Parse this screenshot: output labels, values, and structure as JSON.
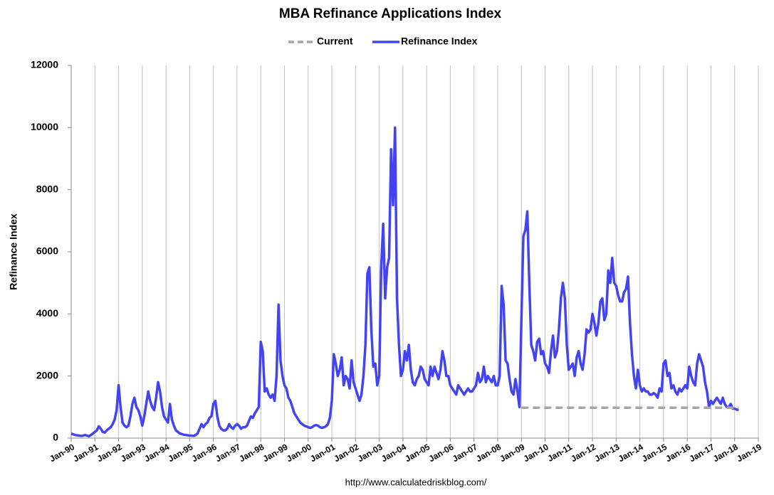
{
  "chart_data": {
    "type": "line",
    "title": "MBA Refinance Applications Index",
    "ylabel": "Refinance Index",
    "footer": "http://www.calculatedriskblog.com/",
    "ylim": [
      0,
      12000
    ],
    "yticks": [
      0,
      2000,
      4000,
      6000,
      8000,
      10000,
      12000
    ],
    "xlim": [
      "1990-01",
      "2019-01"
    ],
    "xticks": [
      {
        "value": "1990-01",
        "label": "Jan-90"
      },
      {
        "value": "1991-01",
        "label": "Jan-91"
      },
      {
        "value": "1992-01",
        "label": "Jan-92"
      },
      {
        "value": "1993-01",
        "label": "Jan-93"
      },
      {
        "value": "1994-01",
        "label": "Jan-94"
      },
      {
        "value": "1995-01",
        "label": "Jan-95"
      },
      {
        "value": "1996-01",
        "label": "Jan-96"
      },
      {
        "value": "1997-01",
        "label": "Jan-97"
      },
      {
        "value": "1998-01",
        "label": "Jan-98"
      },
      {
        "value": "1999-01",
        "label": "Jan-99"
      },
      {
        "value": "2000-01",
        "label": "Jan-00"
      },
      {
        "value": "2001-01",
        "label": "Jan-01"
      },
      {
        "value": "2002-01",
        "label": "Jan-02"
      },
      {
        "value": "2003-01",
        "label": "Jan-03"
      },
      {
        "value": "2004-01",
        "label": "Jan-04"
      },
      {
        "value": "2005-01",
        "label": "Jan-05"
      },
      {
        "value": "2006-01",
        "label": "Jan-06"
      },
      {
        "value": "2007-01",
        "label": "Jan-07"
      },
      {
        "value": "2008-01",
        "label": "Jan-08"
      },
      {
        "value": "2009-01",
        "label": "Jan-09"
      },
      {
        "value": "2010-01",
        "label": "Jan-10"
      },
      {
        "value": "2011-01",
        "label": "Jan-11"
      },
      {
        "value": "2012-01",
        "label": "Jan-12"
      },
      {
        "value": "2013-01",
        "label": "Jan-13"
      },
      {
        "value": "2014-01",
        "label": "Jan-14"
      },
      {
        "value": "2015-01",
        "label": "Jan-15"
      },
      {
        "value": "2016-01",
        "label": "Jan-16"
      },
      {
        "value": "2017-01",
        "label": "Jan-17"
      },
      {
        "value": "2018-01",
        "label": "Jan-18"
      },
      {
        "value": "2019-01",
        "label": "Jan-19"
      }
    ],
    "grid": "x",
    "series": [
      {
        "name": "Current",
        "color": "#a6a6a6",
        "line_style": "dashed",
        "x": [
          "2009-01",
          "2018-03"
        ],
        "values": [
          980,
          980
        ]
      },
      {
        "name": "Refinance Index",
        "color": "#4343f2",
        "line_style": "solid",
        "x": [
          "1990-01",
          "1990-02",
          "1990-03",
          "1990-04",
          "1990-05",
          "1990-06",
          "1990-07",
          "1990-08",
          "1990-09",
          "1990-10",
          "1990-11",
          "1990-12",
          "1991-01",
          "1991-02",
          "1991-03",
          "1991-04",
          "1991-05",
          "1991-06",
          "1991-07",
          "1991-08",
          "1991-09",
          "1991-10",
          "1991-11",
          "1991-12",
          "1992-01",
          "1992-02",
          "1992-03",
          "1992-04",
          "1992-05",
          "1992-06",
          "1992-07",
          "1992-08",
          "1992-09",
          "1992-10",
          "1992-11",
          "1992-12",
          "1993-01",
          "1993-02",
          "1993-03",
          "1993-04",
          "1993-05",
          "1993-06",
          "1993-07",
          "1993-08",
          "1993-09",
          "1993-10",
          "1993-11",
          "1993-12",
          "1994-01",
          "1994-02",
          "1994-03",
          "1994-04",
          "1994-05",
          "1994-06",
          "1994-07",
          "1994-08",
          "1994-09",
          "1994-10",
          "1994-11",
          "1994-12",
          "1995-01",
          "1995-02",
          "1995-03",
          "1995-04",
          "1995-05",
          "1995-06",
          "1995-07",
          "1995-08",
          "1995-09",
          "1995-10",
          "1995-11",
          "1995-12",
          "1996-01",
          "1996-02",
          "1996-03",
          "1996-04",
          "1996-05",
          "1996-06",
          "1996-07",
          "1996-08",
          "1996-09",
          "1996-10",
          "1996-11",
          "1996-12",
          "1997-01",
          "1997-02",
          "1997-03",
          "1997-04",
          "1997-05",
          "1997-06",
          "1997-07",
          "1997-08",
          "1997-09",
          "1997-10",
          "1997-11",
          "1997-12",
          "1998-01",
          "1998-02",
          "1998-03",
          "1998-04",
          "1998-05",
          "1998-06",
          "1998-07",
          "1998-08",
          "1998-09",
          "1998-10",
          "1998-11",
          "1998-12",
          "1999-01",
          "1999-02",
          "1999-03",
          "1999-04",
          "1999-05",
          "1999-06",
          "1999-07",
          "1999-08",
          "1999-09",
          "1999-10",
          "1999-11",
          "1999-12",
          "2000-01",
          "2000-02",
          "2000-03",
          "2000-04",
          "2000-05",
          "2000-06",
          "2000-07",
          "2000-08",
          "2000-09",
          "2000-10",
          "2000-11",
          "2000-12",
          "2001-01",
          "2001-02",
          "2001-03",
          "2001-04",
          "2001-05",
          "2001-06",
          "2001-07",
          "2001-08",
          "2001-09",
          "2001-10",
          "2001-11",
          "2001-12",
          "2002-01",
          "2002-02",
          "2002-03",
          "2002-04",
          "2002-05",
          "2002-06",
          "2002-07",
          "2002-08",
          "2002-09",
          "2002-10",
          "2002-11",
          "2002-12",
          "2003-01",
          "2003-02",
          "2003-03",
          "2003-04",
          "2003-05",
          "2003-06",
          "2003-07",
          "2003-08",
          "2003-09",
          "2003-10",
          "2003-11",
          "2003-12",
          "2004-01",
          "2004-02",
          "2004-03",
          "2004-04",
          "2004-05",
          "2004-06",
          "2004-07",
          "2004-08",
          "2004-09",
          "2004-10",
          "2004-11",
          "2004-12",
          "2005-01",
          "2005-02",
          "2005-03",
          "2005-04",
          "2005-05",
          "2005-06",
          "2005-07",
          "2005-08",
          "2005-09",
          "2005-10",
          "2005-11",
          "2005-12",
          "2006-01",
          "2006-02",
          "2006-03",
          "2006-04",
          "2006-05",
          "2006-06",
          "2006-07",
          "2006-08",
          "2006-09",
          "2006-10",
          "2006-11",
          "2006-12",
          "2007-01",
          "2007-02",
          "2007-03",
          "2007-04",
          "2007-05",
          "2007-06",
          "2007-07",
          "2007-08",
          "2007-09",
          "2007-10",
          "2007-11",
          "2007-12",
          "2008-01",
          "2008-02",
          "2008-03",
          "2008-04",
          "2008-05",
          "2008-06",
          "2008-07",
          "2008-08",
          "2008-09",
          "2008-10",
          "2008-11",
          "2008-12",
          "2009-01",
          "2009-02",
          "2009-03",
          "2009-04",
          "2009-05",
          "2009-06",
          "2009-07",
          "2009-08",
          "2009-09",
          "2009-10",
          "2009-11",
          "2009-12",
          "2010-01",
          "2010-02",
          "2010-03",
          "2010-04",
          "2010-05",
          "2010-06",
          "2010-07",
          "2010-08",
          "2010-09",
          "2010-10",
          "2010-11",
          "2010-12",
          "2011-01",
          "2011-02",
          "2011-03",
          "2011-04",
          "2011-05",
          "2011-06",
          "2011-07",
          "2011-08",
          "2011-09",
          "2011-10",
          "2011-11",
          "2011-12",
          "2012-01",
          "2012-02",
          "2012-03",
          "2012-04",
          "2012-05",
          "2012-06",
          "2012-07",
          "2012-08",
          "2012-09",
          "2012-10",
          "2012-11",
          "2012-12",
          "2013-01",
          "2013-02",
          "2013-03",
          "2013-04",
          "2013-05",
          "2013-06",
          "2013-07",
          "2013-08",
          "2013-09",
          "2013-10",
          "2013-11",
          "2013-12",
          "2014-01",
          "2014-02",
          "2014-03",
          "2014-04",
          "2014-05",
          "2014-06",
          "2014-07",
          "2014-08",
          "2014-09",
          "2014-10",
          "2014-11",
          "2014-12",
          "2015-01",
          "2015-02",
          "2015-03",
          "2015-04",
          "2015-05",
          "2015-06",
          "2015-07",
          "2015-08",
          "2015-09",
          "2015-10",
          "2015-11",
          "2015-12",
          "2016-01",
          "2016-02",
          "2016-03",
          "2016-04",
          "2016-05",
          "2016-06",
          "2016-07",
          "2016-08",
          "2016-09",
          "2016-10",
          "2016-11",
          "2016-12",
          "2017-01",
          "2017-02",
          "2017-03",
          "2017-04",
          "2017-05",
          "2017-06",
          "2017-07",
          "2017-08",
          "2017-09",
          "2017-10",
          "2017-11",
          "2017-12",
          "2018-01",
          "2018-02",
          "2018-03"
        ],
        "values": [
          150,
          120,
          100,
          90,
          80,
          70,
          80,
          100,
          80,
          60,
          100,
          150,
          200,
          250,
          380,
          300,
          200,
          180,
          250,
          300,
          350,
          450,
          600,
          900,
          1700,
          1000,
          500,
          400,
          350,
          400,
          700,
          1100,
          1300,
          1000,
          900,
          700,
          400,
          700,
          1100,
          1500,
          1200,
          1000,
          900,
          1300,
          1800,
          1500,
          1000,
          700,
          600,
          500,
          1100,
          600,
          400,
          250,
          200,
          150,
          130,
          110,
          100,
          90,
          80,
          80,
          70,
          100,
          150,
          300,
          450,
          350,
          450,
          500,
          650,
          700,
          1100,
          1200,
          700,
          400,
          300,
          250,
          250,
          300,
          450,
          350,
          300,
          400,
          450,
          400,
          300,
          350,
          350,
          400,
          550,
          700,
          650,
          800,
          900,
          1000,
          3100,
          2800,
          1500,
          1600,
          1400,
          1300,
          1400,
          1200,
          2000,
          4300,
          2500,
          2000,
          1700,
          1600,
          1300,
          1200,
          1000,
          800,
          700,
          600,
          500,
          450,
          400,
          380,
          350,
          330,
          350,
          400,
          420,
          400,
          350,
          330,
          350,
          380,
          450,
          650,
          1200,
          2700,
          2400,
          2000,
          2200,
          2600,
          1700,
          2000,
          1900,
          1600,
          2500,
          1800,
          1600,
          1400,
          1200,
          1400,
          2000,
          3000,
          5300,
          5500,
          3500,
          2300,
          2400,
          1700,
          2000,
          5500,
          6900,
          4500,
          5500,
          5800,
          9300,
          7500,
          10000,
          4500,
          3000,
          2000,
          2200,
          2800,
          2500,
          3000,
          2200,
          1800,
          1700,
          1900,
          2000,
          2300,
          2200,
          1900,
          1800,
          1700,
          2300,
          2000,
          2300,
          2100,
          1900,
          2200,
          2800,
          2500,
          2000,
          2000,
          1700,
          1600,
          1500,
          1400,
          1700,
          1600,
          1500,
          1400,
          1500,
          1600,
          1500,
          1500,
          1600,
          1700,
          2100,
          1800,
          1900,
          2300,
          1800,
          2000,
          1900,
          1800,
          2000,
          1700,
          1700,
          2000,
          4900,
          4300,
          2500,
          2400,
          1900,
          1500,
          1400,
          1900,
          1500,
          1000,
          3800,
          6500,
          6700,
          7300,
          5000,
          3000,
          2800,
          2500,
          3100,
          3200,
          2700,
          2800,
          2400,
          2300,
          2100,
          2800,
          3300,
          2600,
          2800,
          3500,
          4500,
          5000,
          4500,
          3000,
          2200,
          2300,
          2400,
          2000,
          2600,
          2800,
          2400,
          2200,
          2700,
          3500,
          3400,
          3500,
          4000,
          3700,
          3300,
          3700,
          4400,
          4500,
          3800,
          4000,
          5400,
          5000,
          5800,
          5000,
          4900,
          4600,
          4400,
          4400,
          4700,
          4800,
          5200,
          3700,
          2700,
          2000,
          1600,
          2200,
          1700,
          1500,
          1600,
          1500,
          1500,
          1400,
          1400,
          1450,
          1400,
          1300,
          1600,
          1500,
          2400,
          2500,
          2000,
          2100,
          1600,
          1700,
          1500,
          1400,
          1600,
          1500,
          1600,
          1700,
          1600,
          2300,
          2000,
          1800,
          1700,
          2400,
          2700,
          2500,
          2300,
          1800,
          1500,
          1000,
          1200,
          1100,
          1200,
          1300,
          1200,
          1100,
          1300,
          1100,
          1000,
          1000,
          1100,
          950,
          950,
          920,
          900
        ]
      }
    ]
  }
}
